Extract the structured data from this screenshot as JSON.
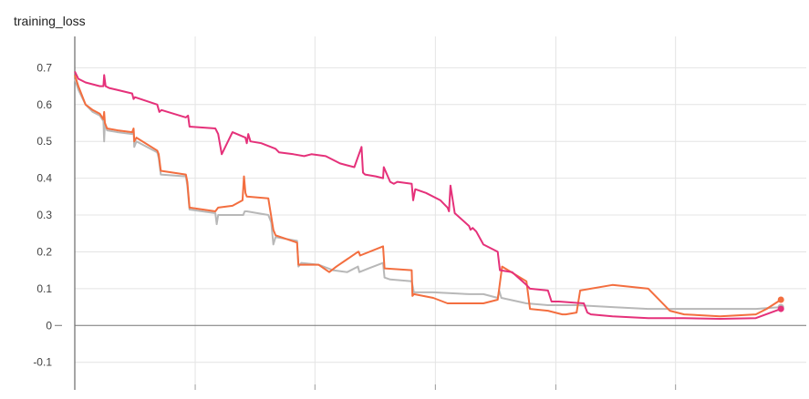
{
  "chart_data": {
    "type": "line",
    "title": "training_loss",
    "xlabel": "",
    "ylabel": "",
    "ylim": [
      -0.175,
      0.785
    ],
    "xlim": [
      0,
      100
    ],
    "y_ticks": [
      "0.7",
      "0.6",
      "0.5",
      "0.4",
      "0.3",
      "0.2",
      "0.1",
      "0",
      "-0.1"
    ],
    "y_tick_values": [
      0.7,
      0.6,
      0.5,
      0.4,
      0.3,
      0.2,
      0.1,
      0,
      -0.1
    ],
    "x_gridlines": [
      0,
      16.8,
      33.5,
      50.3,
      67.1,
      83.8
    ],
    "grid": true,
    "legend": "none",
    "series": [
      {
        "color": "#e5317a",
        "x": [
          0,
          0.5,
          1.5,
          3.5,
          4,
          4.1,
          4.3,
          4.8,
          8,
          8.2,
          8.4,
          11.5,
          11.8,
          12.1,
          15.5,
          15.8,
          16,
          19.6,
          20,
          20.5,
          22,
          23.8,
          24,
          24.2,
          24.5,
          26,
          28,
          28.5,
          30.5,
          32,
          33,
          35,
          37,
          38,
          39,
          40,
          40.2,
          40.5,
          42,
          43,
          43.1,
          44,
          44.5,
          45,
          47,
          47.2,
          47.5,
          49,
          51,
          52,
          52.2,
          52.4,
          53,
          55,
          55.2,
          55.5,
          56,
          57,
          59,
          59.3,
          61,
          63,
          63.5,
          66,
          66.5,
          67.5,
          71,
          71.5,
          72,
          75,
          80,
          85,
          90,
          95,
          98.5
        ],
        "values": [
          0.69,
          0.67,
          0.66,
          0.65,
          0.65,
          0.68,
          0.65,
          0.645,
          0.63,
          0.615,
          0.62,
          0.6,
          0.58,
          0.585,
          0.565,
          0.57,
          0.54,
          0.535,
          0.52,
          0.465,
          0.525,
          0.51,
          0.495,
          0.52,
          0.5,
          0.495,
          0.48,
          0.47,
          0.465,
          0.46,
          0.465,
          0.46,
          0.44,
          0.435,
          0.43,
          0.485,
          0.415,
          0.41,
          0.405,
          0.4,
          0.43,
          0.39,
          0.385,
          0.39,
          0.385,
          0.34,
          0.37,
          0.36,
          0.34,
          0.32,
          0.31,
          0.38,
          0.305,
          0.27,
          0.26,
          0.265,
          0.255,
          0.22,
          0.2,
          0.15,
          0.145,
          0.11,
          0.1,
          0.095,
          0.065,
          0.065,
          0.06,
          0.035,
          0.03,
          0.025,
          0.02,
          0.02,
          0.018,
          0.02,
          0.045
        ]
      },
      {
        "color": "#f36e3f",
        "x": [
          0,
          0.5,
          1.5,
          2.5,
          3.5,
          4,
          4.1,
          4.2,
          4.5,
          6,
          8,
          8.2,
          8.3,
          8.6,
          11.5,
          11.7,
          12,
          15.5,
          15.7,
          16,
          19.6,
          19.8,
          20,
          22,
          23.4,
          23.6,
          23.8,
          24,
          27,
          27.7,
          28,
          31,
          31.2,
          31.6,
          34,
          35.5,
          36.5,
          38,
          39.5,
          39.6,
          39.8,
          43,
          43.2,
          47,
          47.1,
          47.3,
          50,
          52,
          57,
          59,
          59.2,
          59.6,
          63,
          63.5,
          66,
          67,
          68,
          68.5,
          70,
          70.5,
          75,
          80,
          83,
          85,
          90,
          95,
          96.5,
          98.5
        ],
        "values": [
          0.68,
          0.65,
          0.6,
          0.585,
          0.575,
          0.56,
          0.58,
          0.55,
          0.535,
          0.53,
          0.525,
          0.535,
          0.5,
          0.51,
          0.475,
          0.465,
          0.42,
          0.41,
          0.39,
          0.32,
          0.31,
          0.315,
          0.32,
          0.325,
          0.34,
          0.405,
          0.36,
          0.35,
          0.345,
          0.26,
          0.245,
          0.225,
          0.165,
          0.165,
          0.165,
          0.145,
          0.16,
          0.18,
          0.2,
          0.2,
          0.19,
          0.215,
          0.155,
          0.15,
          0.08,
          0.085,
          0.075,
          0.06,
          0.06,
          0.07,
          0.1,
          0.16,
          0.12,
          0.045,
          0.04,
          0.035,
          0.03,
          0.03,
          0.035,
          0.095,
          0.11,
          0.1,
          0.04,
          0.03,
          0.025,
          0.03,
          0.045,
          0.07
        ]
      },
      {
        "color": "#b8b8b8",
        "x": [
          0,
          0.5,
          1.5,
          2.5,
          3.5,
          4,
          4.1,
          4.2,
          4.5,
          6,
          8,
          8.2,
          8.3,
          8.6,
          11.5,
          11.7,
          12,
          15.5,
          15.7,
          16,
          19.6,
          19.8,
          20,
          22,
          23.5,
          23.7,
          24,
          27,
          27.4,
          27.7,
          28,
          31,
          31.2,
          31.6,
          34,
          36,
          38,
          39.5,
          39.7,
          41,
          43,
          43.2,
          44,
          47,
          47.3,
          50,
          55,
          57,
          59,
          59.2,
          59.5,
          63,
          66,
          70,
          75,
          80,
          85,
          90,
          95,
          98.5
        ],
        "values": [
          0.67,
          0.64,
          0.6,
          0.58,
          0.57,
          0.555,
          0.5,
          0.55,
          0.53,
          0.525,
          0.52,
          0.53,
          0.485,
          0.5,
          0.47,
          0.455,
          0.41,
          0.405,
          0.38,
          0.315,
          0.305,
          0.275,
          0.3,
          0.3,
          0.3,
          0.31,
          0.31,
          0.3,
          0.28,
          0.22,
          0.24,
          0.23,
          0.16,
          0.17,
          0.165,
          0.15,
          0.145,
          0.16,
          0.145,
          0.155,
          0.17,
          0.13,
          0.125,
          0.12,
          0.09,
          0.09,
          0.085,
          0.085,
          0.075,
          0.095,
          0.075,
          0.06,
          0.055,
          0.055,
          0.05,
          0.045,
          0.045,
          0.045,
          0.045,
          0.05
        ]
      }
    ]
  }
}
